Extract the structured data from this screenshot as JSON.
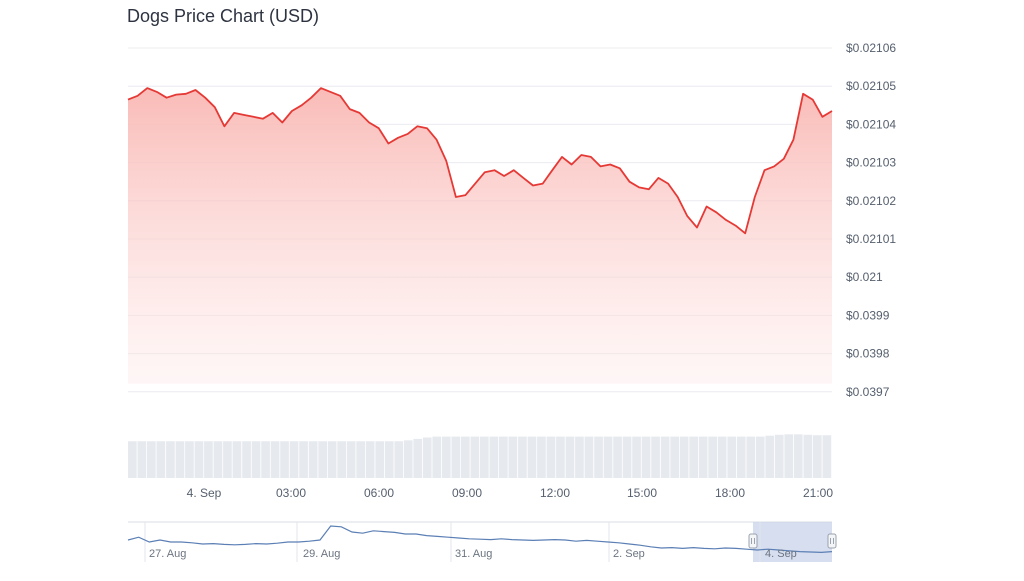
{
  "chart_data": {
    "type": "area",
    "title": "Dogs Price Chart (USD)",
    "yticks": [
      "$0.02106",
      "$0.02105",
      "$0.02104",
      "$0.02103",
      "$0.02102",
      "$0.02101",
      "$0.021",
      "$0.0399",
      "$0.0398",
      "$0.0397"
    ],
    "xticks": [
      "4. Sep",
      "03:00",
      "06:00",
      "09:00",
      "12:00",
      "15:00",
      "18:00",
      "21:00"
    ],
    "navigator_ticks": [
      "27. Aug",
      "29. Aug",
      "31. Aug",
      "2. Sep",
      "4. Sep"
    ],
    "colors": {
      "line": "#e53935",
      "fill": "#fbc9c6",
      "volume": "#e6e9ee",
      "navigator_line": "#5b7fb5",
      "navigator_selection": "#c8d3ea"
    },
    "grid": true,
    "price_level": [
      7.65,
      7.75,
      7.95,
      7.85,
      7.7,
      7.78,
      7.8,
      7.9,
      7.7,
      7.45,
      6.95,
      7.3,
      7.25,
      7.2,
      7.15,
      7.3,
      7.05,
      7.35,
      7.5,
      7.7,
      7.95,
      7.85,
      7.75,
      7.4,
      7.3,
      7.05,
      6.9,
      6.5,
      6.65,
      6.75,
      6.95,
      6.9,
      6.6,
      6.05,
      5.1,
      5.15,
      5.45,
      5.75,
      5.8,
      5.65,
      5.8,
      5.6,
      5.4,
      5.45,
      5.8,
      6.15,
      5.95,
      6.2,
      6.15,
      5.9,
      5.95,
      5.85,
      5.5,
      5.35,
      5.3,
      5.6,
      5.45,
      5.1,
      4.6,
      4.3,
      4.85,
      4.7,
      4.5,
      4.35,
      4.15,
      5.1,
      5.8,
      5.9,
      6.1,
      6.6,
      7.8,
      7.65,
      7.2,
      7.35
    ],
    "volume_level": [
      0.8,
      0.8,
      0.8,
      0.8,
      0.8,
      0.8,
      0.8,
      0.8,
      0.8,
      0.8,
      0.8,
      0.8,
      0.8,
      0.8,
      0.8,
      0.8,
      0.8,
      0.8,
      0.8,
      0.8,
      0.8,
      0.8,
      0.8,
      0.8,
      0.8,
      0.8,
      0.8,
      0.8,
      0.8,
      0.82,
      0.85,
      0.88,
      0.9,
      0.9,
      0.9,
      0.9,
      0.9,
      0.9,
      0.9,
      0.9,
      0.9,
      0.9,
      0.9,
      0.9,
      0.9,
      0.9,
      0.9,
      0.9,
      0.9,
      0.9,
      0.9,
      0.9,
      0.9,
      0.9,
      0.9,
      0.9,
      0.9,
      0.9,
      0.9,
      0.9,
      0.9,
      0.9,
      0.9,
      0.9,
      0.9,
      0.9,
      0.9,
      0.92,
      0.94,
      0.95,
      0.95,
      0.94,
      0.93,
      0.93
    ],
    "navigator_level": [
      0.55,
      0.62,
      0.5,
      0.55,
      0.5,
      0.5,
      0.48,
      0.45,
      0.46,
      0.44,
      0.43,
      0.44,
      0.46,
      0.45,
      0.47,
      0.5,
      0.5,
      0.52,
      0.55,
      0.9,
      0.88,
      0.75,
      0.72,
      0.78,
      0.76,
      0.74,
      0.7,
      0.7,
      0.66,
      0.64,
      0.62,
      0.6,
      0.58,
      0.57,
      0.56,
      0.58,
      0.56,
      0.55,
      0.54,
      0.55,
      0.56,
      0.55,
      0.52,
      0.54,
      0.52,
      0.5,
      0.48,
      0.45,
      0.42,
      0.38,
      0.35,
      0.36,
      0.34,
      0.36,
      0.34,
      0.33,
      0.35,
      0.34,
      0.32,
      0.3,
      0.32,
      0.3,
      0.28,
      0.26,
      0.25,
      0.24,
      0.26
    ]
  }
}
